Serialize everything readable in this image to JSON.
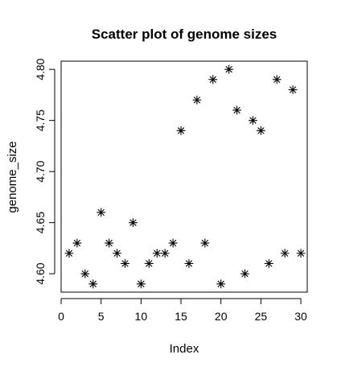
{
  "chart_data": {
    "type": "scatter",
    "title": "Scatter plot of genome sizes",
    "xlabel": "Index",
    "ylabel": "genome_size",
    "xlim": [
      0.0,
      30.8
    ],
    "ylim": [
      4.582,
      4.808
    ],
    "x_ticks": [
      0,
      5,
      10,
      15,
      20,
      25,
      30
    ],
    "x_tick_labels": [
      "0",
      "5",
      "10",
      "15",
      "20",
      "25",
      "30"
    ],
    "y_ticks": [
      4.6,
      4.65,
      4.7,
      4.75,
      4.8
    ],
    "y_tick_labels": [
      "4.60",
      "4.65",
      "4.70",
      "4.75",
      "4.80"
    ],
    "marker": "asterisk",
    "grid": false,
    "colors": {
      "background": "#ffffff",
      "foreground": "#000000"
    },
    "series": [
      {
        "x": [
          1,
          2,
          3,
          4,
          5,
          6,
          7,
          8,
          9,
          10,
          11,
          12,
          13,
          14,
          15,
          16,
          17,
          18,
          19,
          20,
          21,
          22,
          23,
          24,
          25,
          26,
          27,
          28,
          29,
          30
        ],
        "y": [
          4.62,
          4.63,
          4.6,
          4.59,
          4.66,
          4.63,
          4.62,
          4.61,
          4.65,
          4.59,
          4.61,
          4.62,
          4.62,
          4.63,
          4.74,
          4.61,
          4.77,
          4.63,
          4.79,
          4.59,
          4.8,
          4.76,
          4.6,
          4.75,
          4.74,
          4.61,
          4.79,
          4.62,
          4.78,
          4.62
        ]
      }
    ]
  }
}
